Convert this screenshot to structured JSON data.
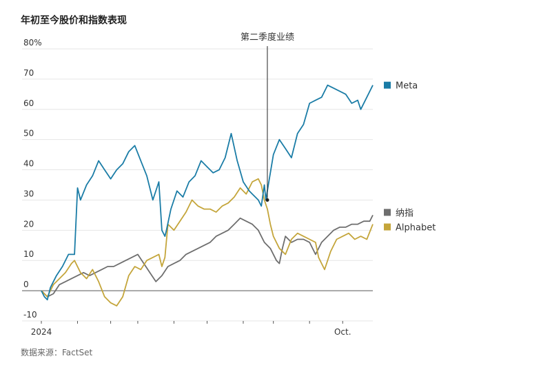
{
  "title": "年初至今股价和指数表现",
  "source": "数据来源：FactSet",
  "chart_data": {
    "type": "line",
    "title": "年初至今股价和指数表现",
    "xlabel": "",
    "ylabel": "",
    "xlim": [
      0,
      11
    ],
    "ylim": [
      -10,
      80
    ],
    "y_ticks": [
      {
        "value": 80,
        "label": "80%"
      },
      {
        "value": 70,
        "label": "70"
      },
      {
        "value": 60,
        "label": "60"
      },
      {
        "value": 50,
        "label": "50"
      },
      {
        "value": 40,
        "label": "40"
      },
      {
        "value": 30,
        "label": "30"
      },
      {
        "value": 20,
        "label": "20"
      },
      {
        "value": 10,
        "label": "10"
      },
      {
        "value": 0,
        "label": "0"
      },
      {
        "value": -10,
        "label": "-10"
      }
    ],
    "x_ticks": [
      {
        "value": 0,
        "label": "2024"
      },
      {
        "value": 1.2,
        "label": ""
      },
      {
        "value": 2.3,
        "label": ""
      },
      {
        "value": 3.2,
        "label": ""
      },
      {
        "value": 4.4,
        "label": ""
      },
      {
        "value": 5.5,
        "label": ""
      },
      {
        "value": 6.7,
        "label": ""
      },
      {
        "value": 7.7,
        "label": ""
      },
      {
        "value": 8.9,
        "label": ""
      },
      {
        "value": 10.0,
        "label": "Oct."
      }
    ],
    "annotation": {
      "label": "第二季度业绩",
      "x": 7.5,
      "y": 30
    },
    "series": [
      {
        "name": "Meta",
        "color": "#1a7ca6",
        "x": [
          0,
          0.1,
          0.2,
          0.3,
          0.5,
          0.7,
          0.9,
          1.1,
          1.2,
          1.3,
          1.5,
          1.7,
          1.9,
          2.1,
          2.3,
          2.5,
          2.7,
          2.9,
          3.1,
          3.3,
          3.5,
          3.7,
          3.9,
          4.0,
          4.1,
          4.15,
          4.3,
          4.5,
          4.7,
          4.9,
          5.1,
          5.3,
          5.5,
          5.7,
          5.9,
          6.1,
          6.3,
          6.5,
          6.7,
          6.9,
          7.0,
          7.2,
          7.3,
          7.4,
          7.45,
          7.55,
          7.7,
          7.9,
          8.1,
          8.3,
          8.5,
          8.7,
          8.9,
          9.1,
          9.3,
          9.5,
          9.7,
          9.9,
          10.1,
          10.3,
          10.5,
          10.6,
          10.8,
          11.0
        ],
        "values": [
          0,
          -2,
          -3,
          1,
          5,
          8,
          12,
          12,
          34,
          30,
          35,
          38,
          43,
          40,
          37,
          40,
          42,
          46,
          48,
          43,
          38,
          30,
          36,
          20,
          18,
          20,
          27,
          33,
          31,
          36,
          38,
          43,
          41,
          39,
          40,
          44,
          52,
          43,
          36,
          33,
          32,
          30,
          28,
          35,
          30,
          36,
          45,
          50,
          47,
          44,
          52,
          55,
          62,
          63,
          64,
          68,
          67,
          66,
          65,
          62,
          63,
          60,
          64,
          68
        ]
      },
      {
        "name": "纳指",
        "color": "#6e6e6e",
        "x": [
          0,
          0.1,
          0.2,
          0.4,
          0.6,
          0.8,
          1.0,
          1.2,
          1.4,
          1.6,
          1.8,
          2.0,
          2.2,
          2.4,
          2.6,
          2.8,
          3.0,
          3.2,
          3.4,
          3.6,
          3.8,
          4.0,
          4.2,
          4.4,
          4.6,
          4.8,
          5.0,
          5.2,
          5.4,
          5.6,
          5.8,
          6.0,
          6.2,
          6.4,
          6.6,
          6.8,
          7.0,
          7.2,
          7.4,
          7.6,
          7.8,
          7.9,
          8.0,
          8.1,
          8.3,
          8.5,
          8.7,
          8.9,
          9.1,
          9.3,
          9.5,
          9.7,
          9.9,
          10.1,
          10.3,
          10.5,
          10.7,
          10.9,
          11.0
        ],
        "values": [
          0,
          -1,
          -2,
          -1,
          2,
          3,
          4,
          5,
          6,
          5,
          6,
          7,
          8,
          8,
          9,
          10,
          11,
          12,
          9,
          6,
          3,
          5,
          8,
          9,
          10,
          12,
          13,
          14,
          15,
          16,
          18,
          19,
          20,
          22,
          24,
          23,
          22,
          20,
          16,
          14,
          10,
          9,
          14,
          18,
          16,
          17,
          17,
          16,
          12,
          16,
          18,
          20,
          21,
          21,
          22,
          22,
          23,
          23,
          25
        ]
      },
      {
        "name": "Alphabet",
        "color": "#c4a53a",
        "x": [
          0,
          0.1,
          0.2,
          0.4,
          0.6,
          0.8,
          1.0,
          1.1,
          1.3,
          1.5,
          1.7,
          1.9,
          2.1,
          2.3,
          2.5,
          2.7,
          2.9,
          3.1,
          3.3,
          3.5,
          3.7,
          3.9,
          4.0,
          4.1,
          4.2,
          4.4,
          4.6,
          4.8,
          5.0,
          5.2,
          5.4,
          5.6,
          5.8,
          6.0,
          6.2,
          6.4,
          6.6,
          6.8,
          7.0,
          7.2,
          7.3,
          7.4,
          7.5,
          7.6,
          7.7,
          7.9,
          8.1,
          8.3,
          8.5,
          8.7,
          8.9,
          9.1,
          9.2,
          9.4,
          9.6,
          9.8,
          10.0,
          10.2,
          10.4,
          10.6,
          10.8,
          11.0
        ],
        "values": [
          0,
          -1,
          -2,
          2,
          4,
          6,
          9,
          10,
          6,
          4,
          7,
          3,
          -2,
          -4,
          -5,
          -2,
          5,
          8,
          7,
          10,
          11,
          12,
          8,
          11,
          22,
          20,
          23,
          26,
          30,
          28,
          27,
          27,
          26,
          28,
          29,
          31,
          34,
          32,
          36,
          37,
          35,
          30,
          27,
          22,
          18,
          14,
          12,
          17,
          19,
          18,
          17,
          16,
          11,
          7,
          13,
          17,
          18,
          19,
          17,
          18,
          17,
          22
        ]
      }
    ]
  }
}
